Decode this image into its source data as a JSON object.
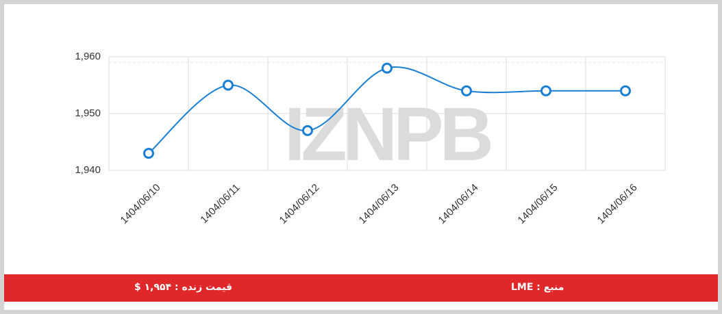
{
  "chart_data": {
    "type": "line",
    "categories": [
      "1404/06/10",
      "1404/06/11",
      "1404/06/12",
      "1404/06/13",
      "1404/06/14",
      "1404/06/15",
      "1404/06/16"
    ],
    "values": [
      1943,
      1955,
      1947,
      1958,
      1954,
      1954,
      1954
    ],
    "color": "#1a7fd4",
    "ylim": [
      1940,
      1960
    ],
    "yticks": [
      {
        "value": 1940,
        "label": "1,940"
      },
      {
        "value": 1950,
        "label": "1,950"
      },
      {
        "value": 1960,
        "label": "1,960"
      }
    ],
    "grid": true,
    "watermark": "IZNPB"
  },
  "footer": {
    "price": "قیمت زنده : ۱,۹۵۴ $",
    "source": "منبع : LME"
  }
}
